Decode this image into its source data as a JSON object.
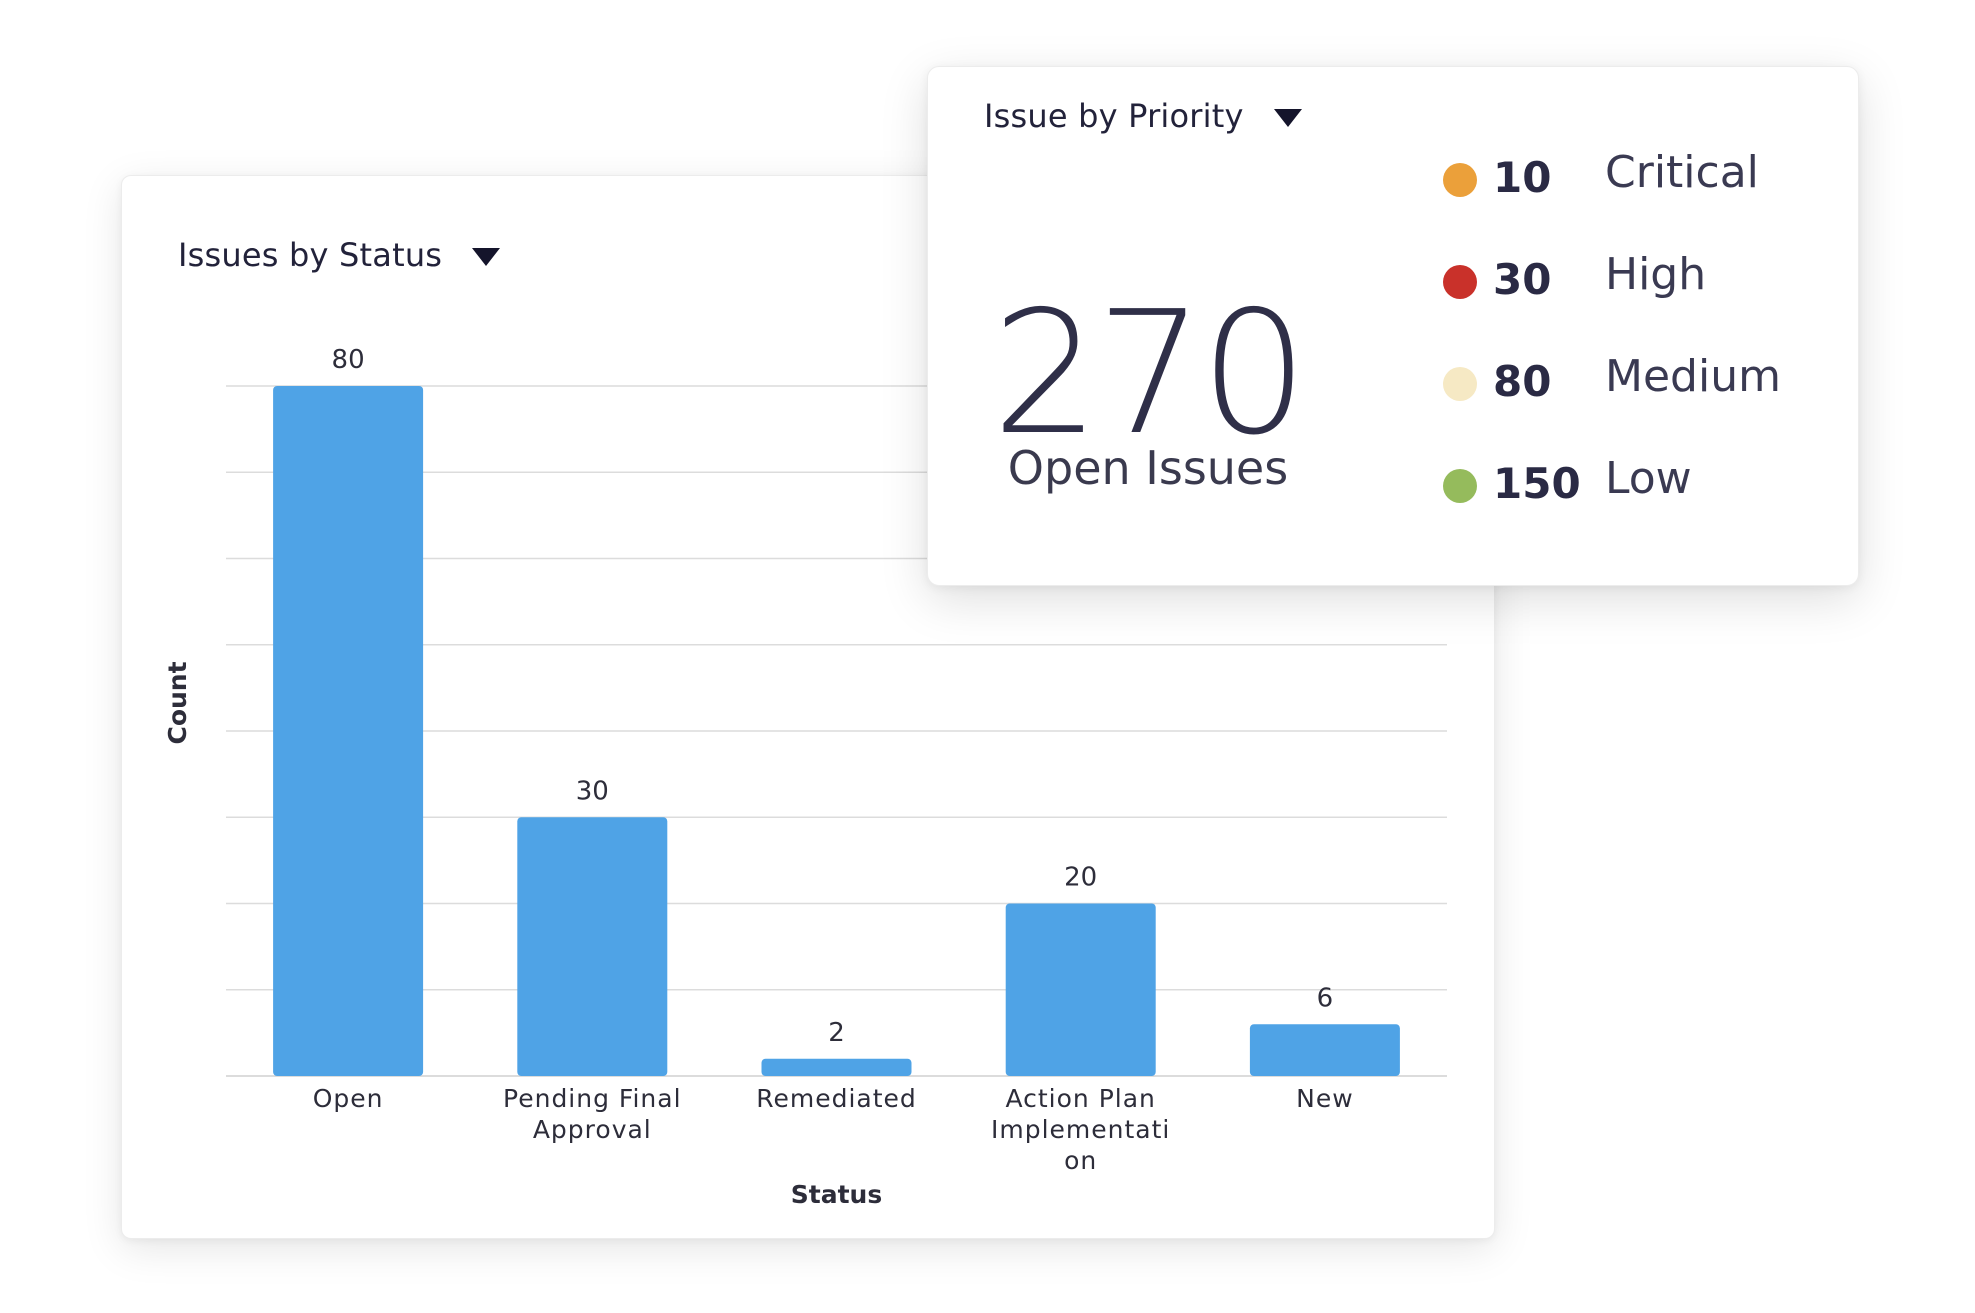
{
  "colors": {
    "bar": "#4fa3e6",
    "grid": "#dcdcdc",
    "text": "#2d2d3a"
  },
  "status_card": {
    "title": "Issues by Status"
  },
  "priority_card": {
    "title": "Issue by Priority",
    "total": "270",
    "total_label": "Open Issues",
    "items": [
      {
        "count": "10",
        "label": "Critical",
        "color": "#eba03a"
      },
      {
        "count": "30",
        "label": "High",
        "color": "#c9312a"
      },
      {
        "count": "80",
        "label": "Medium",
        "color": "#f6e9c4"
      },
      {
        "count": "150",
        "label": "Low",
        "color": "#95bb5c"
      }
    ]
  },
  "chart_data": {
    "type": "bar",
    "title": "Issues by Status",
    "xlabel": "Status",
    "ylabel": "Count",
    "categories": [
      "Open",
      "Pending Final Approval",
      "Remediated",
      "Action Plan Implementation",
      "New"
    ],
    "category_display_lines": [
      [
        "Open"
      ],
      [
        "Pending Final",
        "Approval"
      ],
      [
        "Remediated"
      ],
      [
        "Action Plan",
        "Implementati",
        "on"
      ],
      [
        "New"
      ]
    ],
    "values": [
      80,
      30,
      2,
      20,
      6
    ],
    "ylim": [
      0,
      80
    ],
    "gridlines": 8,
    "data_labels": true
  }
}
